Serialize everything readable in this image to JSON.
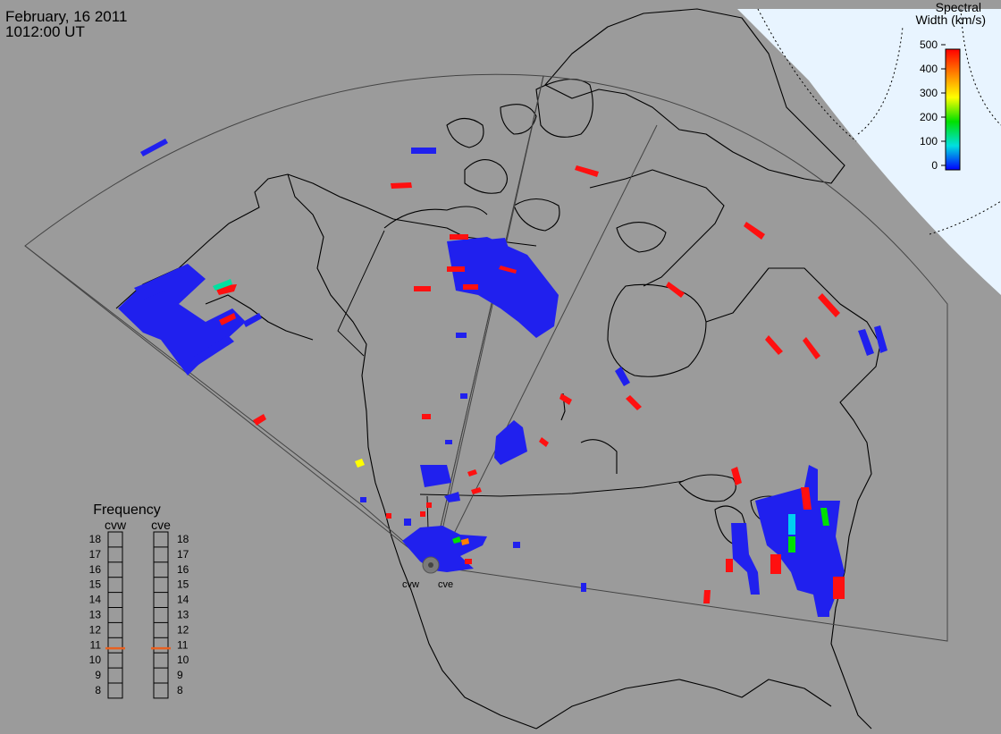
{
  "header": {
    "date": "February, 16 2011",
    "time": "1012:00 UT"
  },
  "colorbar": {
    "title_line1": "Spectral",
    "title_line2": "Width (km/s)",
    "ticks": [
      "500",
      "400",
      "300",
      "200",
      "100",
      "0"
    ],
    "colors": [
      "#ff0000",
      "#ff8000",
      "#ffff00",
      "#00e000",
      "#00e0e0",
      "#0000ff"
    ]
  },
  "frequency_panel": {
    "title": "Frequency",
    "radar_left": "cvw",
    "radar_right": "cve",
    "scale": [
      "18",
      "17",
      "16",
      "15",
      "14",
      "13",
      "12",
      "11",
      "10",
      "9",
      "8"
    ],
    "cvw_value_mhz": 10.8,
    "cve_value_mhz": 10.8,
    "indicator_color": "#e86020"
  },
  "radars": {
    "left_label": "cvw",
    "right_label": "cve"
  },
  "colors": {
    "background": "#9b9b9b",
    "polar_cap": "#e8f4ff",
    "coast": "#000000",
    "fov": "#444444",
    "low_width": "#2020ee",
    "high_width": "#ff1010"
  }
}
